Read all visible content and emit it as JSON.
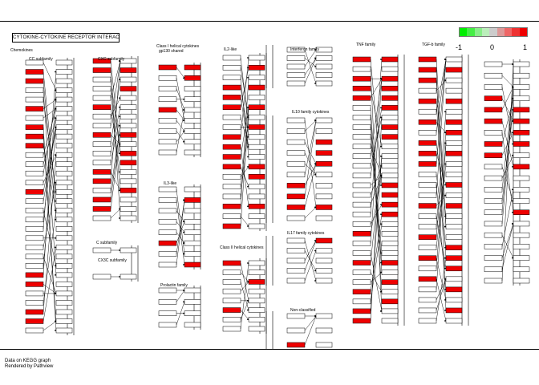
{
  "title": "CYTOKINE-CYTOKINE RECEPTOR INTERACTION",
  "families": [
    {
      "label": "Chemokines",
      "pos": "chemokines"
    },
    {
      "label": "CC subfamily",
      "pos": "cc"
    },
    {
      "label": "CXC subfamily",
      "pos": "cxc"
    },
    {
      "label": "C subfamily",
      "pos": "c"
    },
    {
      "label": "CX3C subfamily",
      "pos": "cx3c"
    },
    {
      "label": "Class I helical cytokines",
      "pos": "class1"
    },
    {
      "label": "gp130 shared",
      "pos": "gp130"
    },
    {
      "label": "IL2-like",
      "pos": "il2"
    },
    {
      "label": "IL3-like",
      "pos": "il3"
    },
    {
      "label": "Prolactin family",
      "pos": "prl"
    },
    {
      "label": "Class II helical cytokines",
      "pos": "class2"
    },
    {
      "label": "Interferon family",
      "pos": "ifn"
    },
    {
      "label": "IL10 family cytokines",
      "pos": "il10"
    },
    {
      "label": "IL17 family cytokines",
      "pos": "il17"
    },
    {
      "label": "Non-classified",
      "pos": "noncls"
    },
    {
      "label": "TNF family",
      "pos": "tnf"
    },
    {
      "label": "TGF-b family",
      "pos": "tgfb"
    }
  ],
  "legend": {
    "colors": [
      "#00ee00",
      "#44ee44",
      "#88ee88",
      "#bbeebb",
      "#cccccc",
      "#dd9999",
      "#ee6666",
      "#ee3333",
      "#ee0000"
    ],
    "labels": [
      "-1",
      "0",
      "1"
    ]
  },
  "footer": {
    "line1": "Data on KEGG graph",
    "line2": "Rendered by Pathview"
  }
}
